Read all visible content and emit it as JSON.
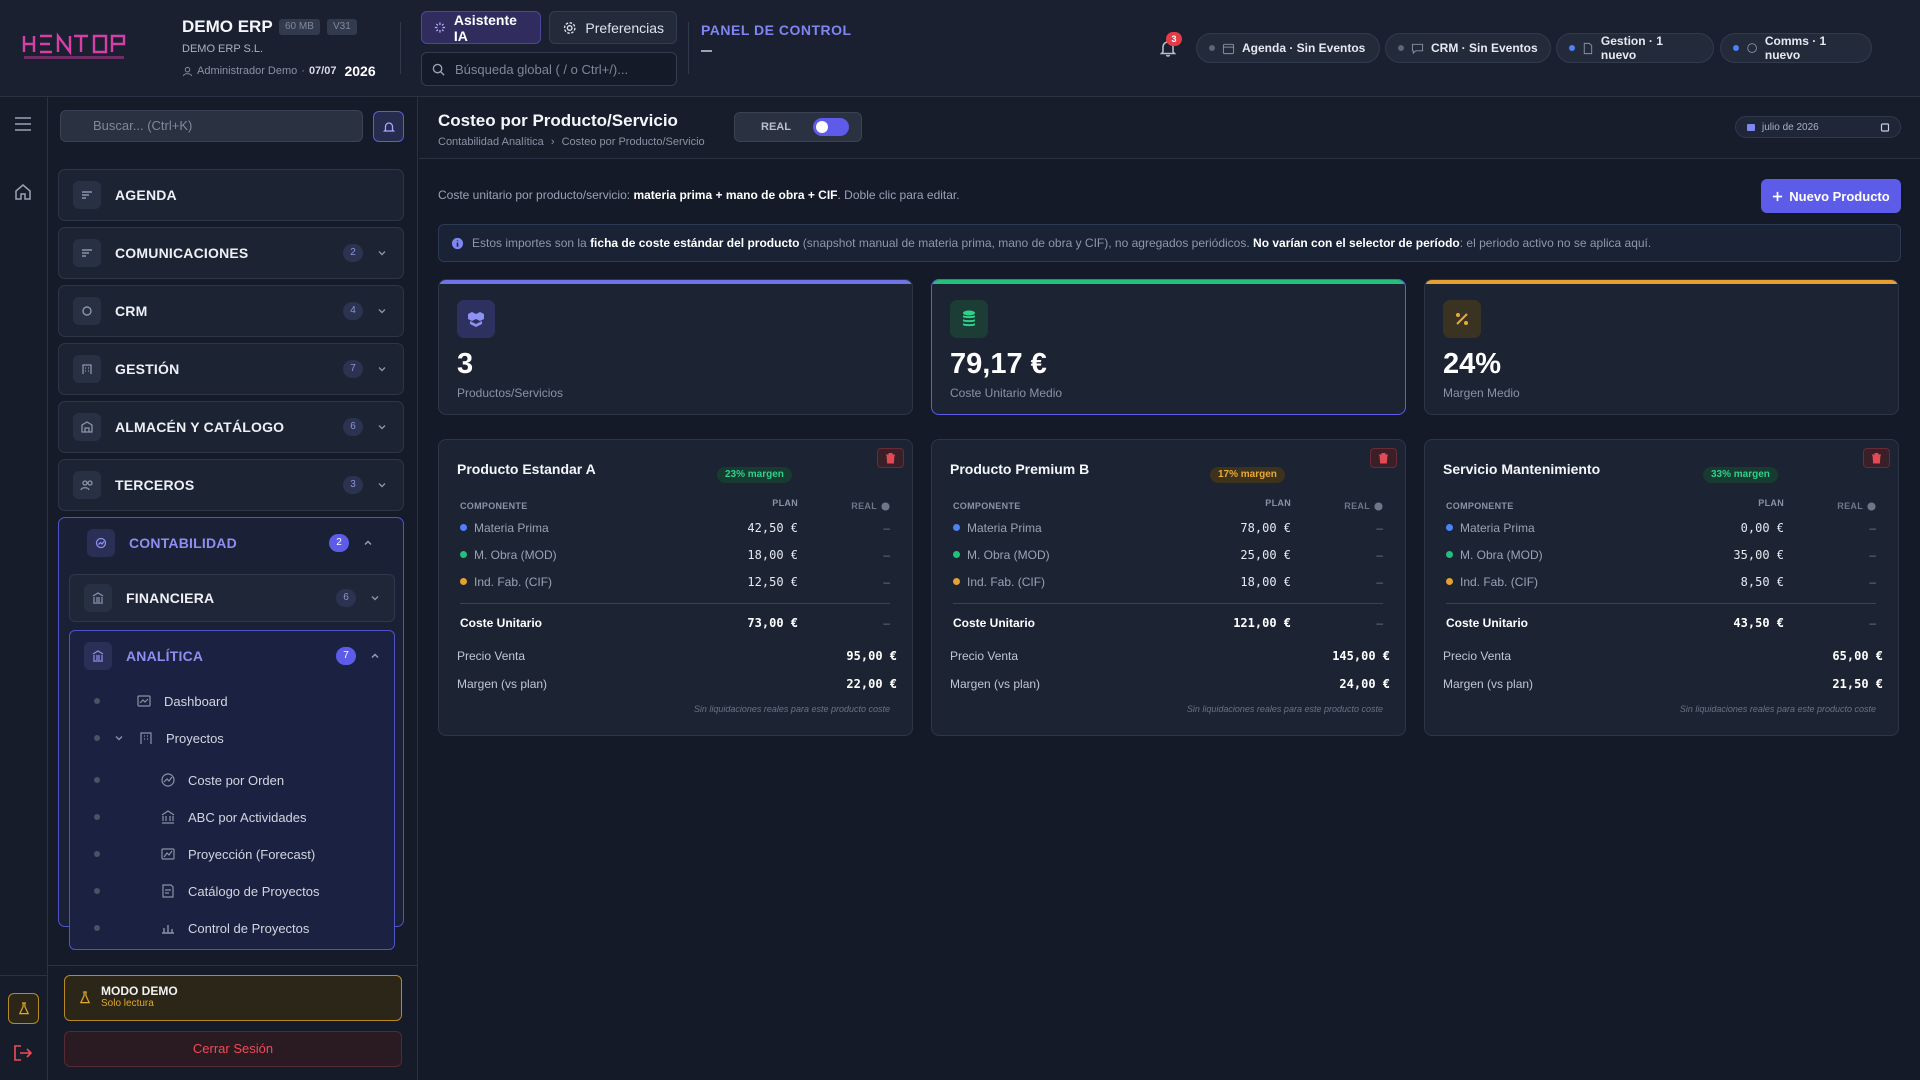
{
  "header": {
    "brand_name": "DEMO ERP",
    "chip_size": "60 MB",
    "chip_version": "V31",
    "company": "DEMO ERP S.L.",
    "user": "Administrador Demo",
    "date": "07/07",
    "year": "2026",
    "ai_button": "Asistente IA",
    "prefs_button": "Preferencias",
    "search_placeholder": "Búsqueda global ( / o Ctrl+/)...",
    "panel_title": "PANEL DE CONTROL",
    "notification_count": "3",
    "status_pills": [
      {
        "label": "Agenda · Sin Eventos",
        "dot": "#5d6576"
      },
      {
        "label": "CRM · Sin Eventos",
        "dot": "#5d6576"
      },
      {
        "label": "Gestion · 1 nuevo",
        "dot": "#4d82f5"
      },
      {
        "label": "Comms · 1 nuevo",
        "dot": "#4d82f5"
      }
    ]
  },
  "sidebar": {
    "search_placeholder": "Buscar... (Ctrl+K)",
    "items": [
      {
        "label": "AGENDA",
        "count": ""
      },
      {
        "label": "COMUNICACIONES",
        "count": "2"
      },
      {
        "label": "CRM",
        "count": "4"
      },
      {
        "label": "GESTIÓN",
        "count": "7"
      },
      {
        "label": "ALMACÉN Y CATÁLOGO",
        "count": "6"
      },
      {
        "label": "TERCEROS",
        "count": "3"
      }
    ],
    "contabilidad": {
      "label": "CONTABILIDAD",
      "count": "2"
    },
    "financiera": {
      "label": "FINANCIERA",
      "count": "6"
    },
    "analitica": {
      "label": "ANALÍTICA",
      "count": "7"
    },
    "leaves": [
      "Dashboard",
      "Proyectos",
      "Coste por Orden",
      "ABC por Actividades",
      "Proyección (Forecast)",
      "Catálogo de Proyectos",
      "Control de Proyectos"
    ],
    "demo_title": "MODO DEMO",
    "demo_sub": "Solo lectura",
    "logout": "Cerrar Sesión"
  },
  "main": {
    "title": "Costeo por Producto/Servicio",
    "breadcrumb_root": "Contabilidad Analítica",
    "breadcrumb_sep": "›",
    "breadcrumb_current": "Costeo por Producto/Servicio",
    "toggle_label": "REAL",
    "period": "julio de 2026",
    "intro_a": "Coste unitario por producto/servicio: ",
    "intro_b": "materia prima + mano de obra + CIF",
    "intro_c": ". Doble clic para editar.",
    "new_button": "Nuevo Producto",
    "info_a": "Estos importes son la ",
    "info_b": "ficha de coste estándar del producto",
    "info_c": " (snapshot manual de materia prima, mano de obra y CIF), no agregados periódicos. ",
    "info_d": "No varían con el selector de período",
    "info_e": ": el periodo activo no se aplica aquí.",
    "kpis": [
      {
        "value": "3",
        "label": "Productos/Servicios",
        "color": "#6e73e6"
      },
      {
        "value": "79,17 €",
        "label": "Coste Unitario Medio",
        "color": "#22c07a"
      },
      {
        "value": "24%",
        "label": "Margen Medio",
        "color": "#e4a132"
      }
    ],
    "table_headers": {
      "component": "COMPONENTE",
      "plan": "PLAN",
      "real": "REAL"
    },
    "component_names": [
      "Materia Prima",
      "M. Obra (MOD)",
      "Ind. Fab. (CIF)"
    ],
    "component_colors": [
      "#4d82f5",
      "#22c07a",
      "#e4a132"
    ],
    "total_label": "Coste Unitario",
    "price_label": "Precio Venta",
    "margin_label": "Margen (vs plan)",
    "footnote": "Sin liquidaciones reales para este producto coste",
    "products": [
      {
        "name": "Producto Estandar A",
        "badge": "23% margen",
        "badge_kind": "green",
        "plan": [
          "42,50 €",
          "18,00 €",
          "12,50 €"
        ],
        "real": [
          "–",
          "–",
          "–"
        ],
        "total": "73,00 €",
        "total_real": "–",
        "price": "95,00 €",
        "margin": "22,00 €"
      },
      {
        "name": "Producto Premium B",
        "badge": "17% margen",
        "badge_kind": "amber",
        "plan": [
          "78,00 €",
          "25,00 €",
          "18,00 €"
        ],
        "real": [
          "–",
          "–",
          "–"
        ],
        "total": "121,00 €",
        "total_real": "–",
        "price": "145,00 €",
        "margin": "24,00 €"
      },
      {
        "name": "Servicio Mantenimiento",
        "badge": "33% margen",
        "badge_kind": "green",
        "plan": [
          "0,00 €",
          "35,00 €",
          "8,50 €"
        ],
        "real": [
          "–",
          "–",
          "–"
        ],
        "total": "43,50 €",
        "total_real": "–",
        "price": "65,00 €",
        "margin": "21,50 €"
      }
    ]
  }
}
